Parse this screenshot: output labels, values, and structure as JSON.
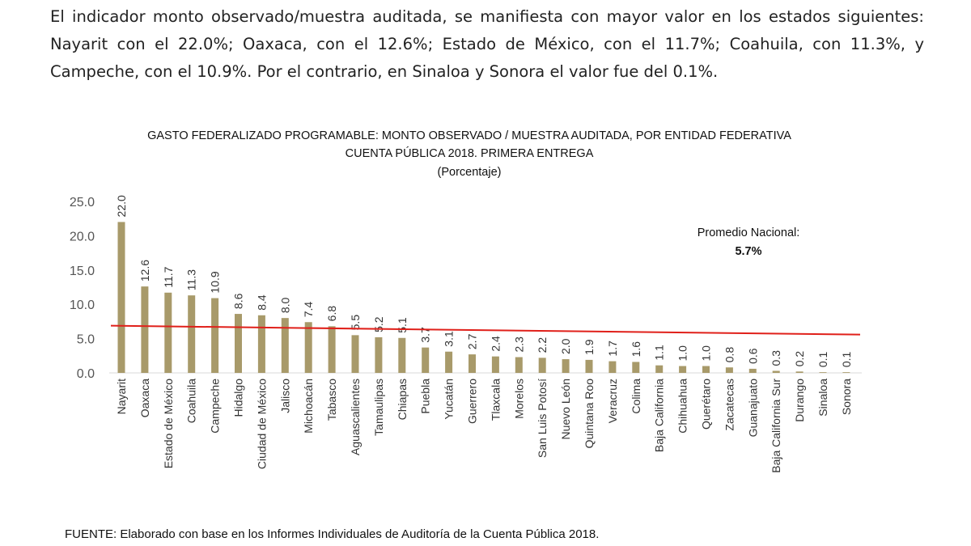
{
  "paragraph": "El indicador monto observado/muestra auditada, se manifiesta con mayor valor en los estados siguientes: Nayarit con el 22.0%; Oaxaca, con el 12.6%; Estado de México, con el 11.7%; Coahuila, con 11.3%, y Campeche, con el 10.9%. Por el contrario, en Sinaloa y Sonora el valor fue del 0.1%.",
  "source": "FUENTE: Elaborado con base en los Informes Individuales de Auditoría de la Cuenta Pública 2018.",
  "chart_data": {
    "type": "bar",
    "title": "GASTO FEDERALIZADO PROGRAMABLE: MONTO OBSERVADO / MUESTRA AUDITADA, POR ENTIDAD FEDERATIVA",
    "subtitle": "CUENTA PÚBLICA 2018. PRIMERA ENTREGA",
    "unit": "(Porcentaje)",
    "categories": [
      "Nayarit",
      "Oaxaca",
      "Estado de México",
      "Coahuila",
      "Campeche",
      "Hidalgo",
      "Ciudad de México",
      "Jalisco",
      "Michoacán",
      "Tabasco",
      "Aguascalientes",
      "Tamaulipas",
      "Chiapas",
      "Puebla",
      "Yucatán",
      "Guerrero",
      "Tlaxcala",
      "Morelos",
      "San Luis Potosí",
      "Nuevo León",
      "Quintana Roo",
      "Veracruz",
      "Colima",
      "Baja California",
      "Chihuahua",
      "Querétaro",
      "Zacatecas",
      "Guanajuato",
      "Baja California Sur",
      "Durango",
      "Sinaloa",
      "Sonora"
    ],
    "values": [
      22.0,
      12.6,
      11.7,
      11.3,
      10.9,
      8.6,
      8.4,
      8.0,
      7.4,
      6.8,
      5.5,
      5.2,
      5.1,
      3.7,
      3.1,
      2.7,
      2.4,
      2.3,
      2.2,
      2.0,
      1.9,
      1.7,
      1.6,
      1.1,
      1.0,
      1.0,
      0.8,
      0.6,
      0.3,
      0.2,
      0.1,
      0.1
    ],
    "labels": [
      "22.0",
      "12.6",
      "11.7",
      "11.3",
      "10.9",
      "8.6",
      "8.4",
      "8.0",
      "7.4",
      "6.8",
      "5.5",
      "5.2",
      "5.1",
      "3.7",
      "3.1",
      "2.7",
      "2.4",
      "2.3",
      "2.2",
      "2.0",
      "1.9",
      "1.7",
      "1.6",
      "1.1",
      "1.0",
      "1.0",
      "0.8",
      "0.6",
      "0.3",
      "0.2",
      "0.1",
      "0.1"
    ],
    "yticks": [
      "0.0",
      "5.0",
      "10.0",
      "15.0",
      "20.0",
      "25.0"
    ],
    "ylim": [
      0,
      25
    ],
    "grid": false,
    "bar_color": "#a89a6a",
    "reference_line": {
      "label": "Promedio Nacional:",
      "value_label": "5.7%",
      "value": 5.7,
      "color": "#e0201a"
    }
  }
}
